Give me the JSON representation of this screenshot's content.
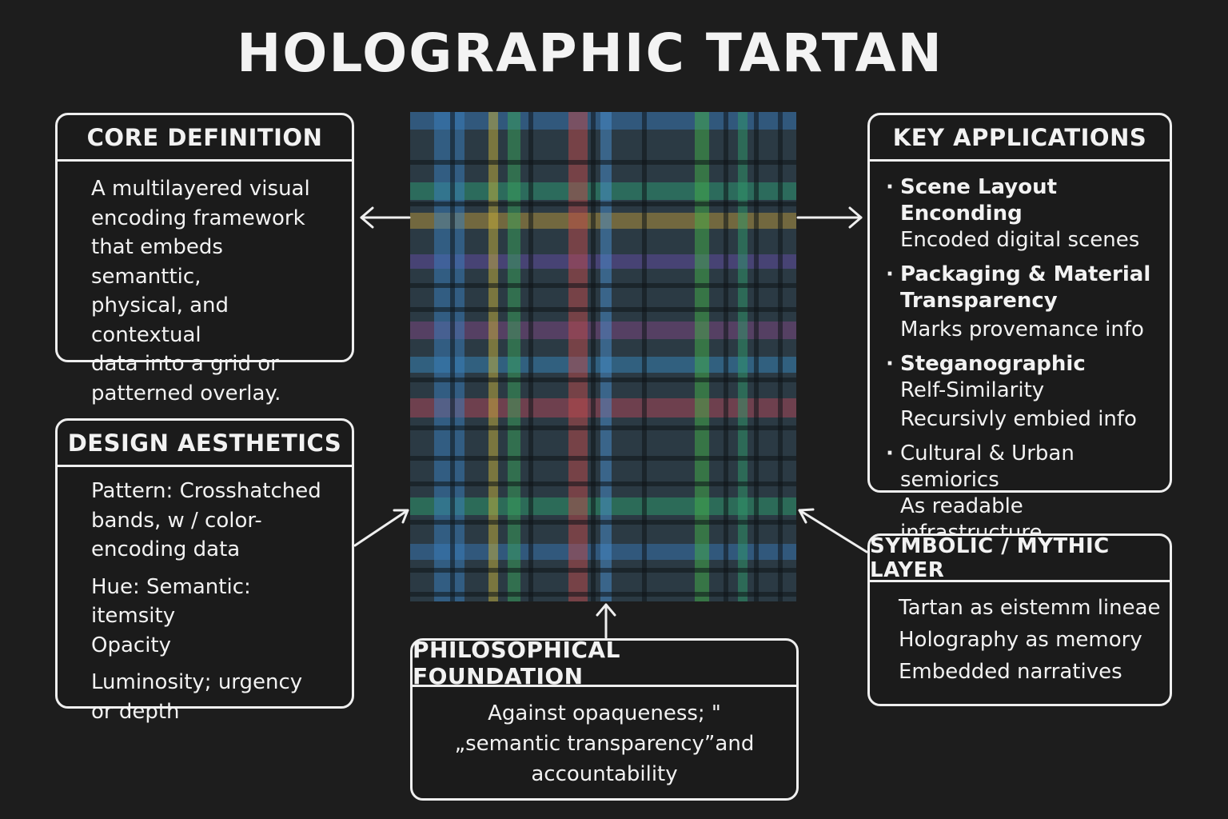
{
  "title": "HOLOGRAPHIC TARTAN",
  "core": {
    "heading": "CORE DEFINITION",
    "lines": [
      "A multilayered visual",
      "encoding framework",
      "that embeds semanttic,",
      "physical, and contextual",
      "data into a grid or",
      "patterned overlay."
    ]
  },
  "design": {
    "heading": "DESIGN AESTHETICS",
    "paragraphs": [
      [
        "Pattern: Crosshatched",
        "bands, w / color-",
        "encoding data"
      ],
      [
        "Hue: Semantic: itemsity",
        "Opacity"
      ],
      [
        "Luminosity; urgency",
        "or depth"
      ]
    ]
  },
  "applications": {
    "heading": "KEY APPLICATIONS",
    "bullet": "·",
    "items": [
      {
        "title": [
          "Scene Layout Enconding"
        ],
        "desc": [
          "Encoded digital scenes"
        ]
      },
      {
        "title": [
          "Packaging & Material",
          "Transparency"
        ],
        "desc": [
          "Marks provemance info"
        ]
      },
      {
        "title": [
          "Steganographic"
        ],
        "desc": [
          "Relf-Similarity",
          "Recursivly embied info"
        ]
      },
      {
        "title": [],
        "desc": [
          "Cultural & Urban semiorics",
          "As readable infrastructure"
        ]
      }
    ]
  },
  "symbolic": {
    "heading": "SYMBOLIC / MYTHIC LAYER",
    "lines": [
      "Tartan as eistemm lineae",
      "Holography as memory",
      "Embedded narratives"
    ]
  },
  "philosophy": {
    "heading": "PHILOSOPHICAL FOUNDATION",
    "lines": [
      "Against opaqueness; \"",
      "„semantic transparency”and",
      "accountability"
    ]
  },
  "tartan": {
    "base_color": "#2b3a44",
    "vertical_bands": [
      {
        "color": "#3a7fc0"
      },
      {
        "color": "#c9b23a"
      },
      {
        "color": "#3aa35a"
      },
      {
        "color": "#c24a4a"
      },
      {
        "color": "#4a8fd0"
      },
      {
        "color": "#44b048"
      },
      {
        "color": "#2f9a6a"
      }
    ],
    "horizontal_bands": [
      {
        "color": "#3a7fc0"
      },
      {
        "color": "#2fa87a"
      },
      {
        "color": "#c9a23a"
      },
      {
        "color": "#6a4fb0"
      },
      {
        "color": "#8a4a8a"
      },
      {
        "color": "#3a90c8"
      },
      {
        "color": "#c24a5a"
      },
      {
        "color": "#2fa870"
      },
      {
        "color": "#3a7fc0"
      }
    ]
  }
}
